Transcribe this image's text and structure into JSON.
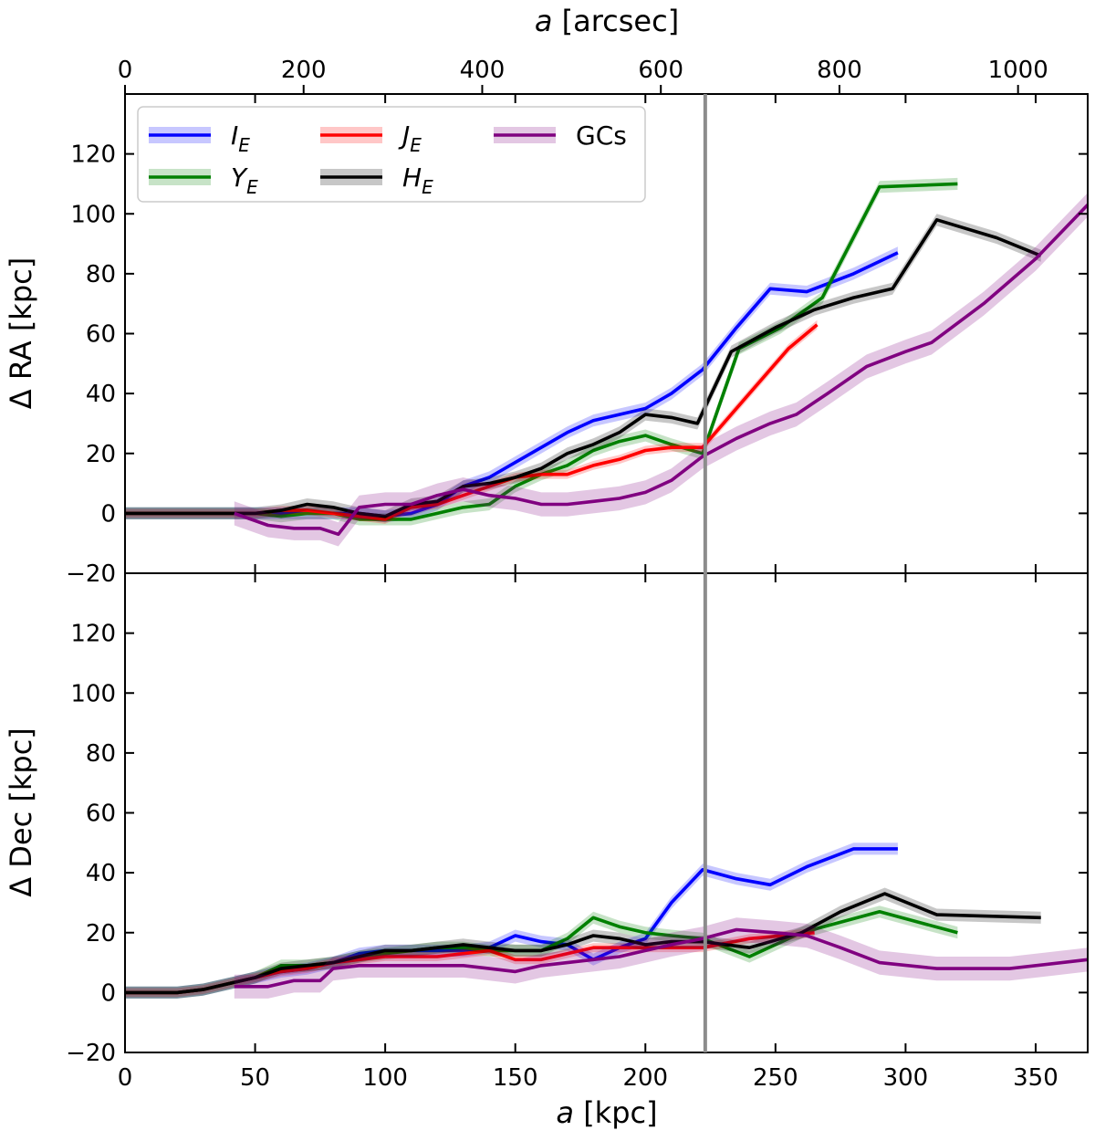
{
  "chart_data": {
    "type": "line",
    "top_axis": {
      "label_italic": "a",
      "label_rest": " [arcsec]",
      "range": [
        0,
        1078
      ],
      "ticks": [
        0,
        200,
        400,
        600,
        800,
        1000
      ]
    },
    "x_axis": {
      "label_italic": "a",
      "label_rest": " [kpc]",
      "range": [
        0,
        370
      ],
      "ticks": [
        0,
        50,
        100,
        150,
        200,
        250,
        300,
        350
      ]
    },
    "vline_x": 223,
    "legend": [
      {
        "key": "IE",
        "main": "I",
        "sub": "E",
        "italic": true
      },
      {
        "key": "YE",
        "main": "Y",
        "sub": "E",
        "italic": true
      },
      {
        "key": "JE",
        "main": "J",
        "sub": "E",
        "italic": true
      },
      {
        "key": "HE",
        "main": "H",
        "sub": "E",
        "italic": true
      },
      {
        "key": "GCs",
        "main": "GCs",
        "sub": "",
        "italic": false
      }
    ],
    "colors": {
      "IE": "#0000ff",
      "YE": "#008000",
      "JE": "#ff0000",
      "HE": "#000000",
      "GCs": "#800080"
    },
    "panels": [
      {
        "name": "ra",
        "ylabel": "Δ RA [kpc]",
        "ylim": [
          -20,
          140
        ],
        "yticks": [
          -20,
          0,
          20,
          40,
          60,
          80,
          100,
          120
        ],
        "series": [
          {
            "key": "IE",
            "band": 2,
            "x": [
              0,
              10,
              20,
              30,
              40,
              50,
              60,
              70,
              80,
              90,
              100,
              110,
              120,
              130,
              140,
              150,
              160,
              170,
              180,
              190,
              200,
              210,
              222,
              235,
              248,
              262,
              280,
              297
            ],
            "y": [
              0,
              0,
              0,
              0,
              0,
              0,
              0,
              0,
              0,
              0,
              -1,
              0,
              3,
              9,
              12,
              17,
              22,
              27,
              31,
              33,
              35,
              40,
              48,
              62,
              75,
              74,
              80,
              87
            ]
          },
          {
            "key": "YE",
            "band": 2,
            "x": [
              0,
              10,
              20,
              30,
              40,
              50,
              60,
              70,
              80,
              90,
              100,
              110,
              120,
              130,
              140,
              150,
              160,
              170,
              180,
              190,
              200,
              210,
              222,
              236,
              252,
              268,
              290,
              320
            ],
            "y": [
              0,
              0,
              0,
              0,
              0,
              0,
              -1,
              0,
              0,
              -2,
              -2,
              -2,
              0,
              2,
              3,
              9,
              13,
              16,
              21,
              24,
              26,
              23,
              20,
              55,
              62,
              72,
              109,
              110
            ]
          },
          {
            "key": "JE",
            "band": 1.5,
            "x": [
              0,
              10,
              20,
              30,
              40,
              50,
              60,
              70,
              80,
              90,
              100,
              110,
              120,
              130,
              140,
              150,
              160,
              170,
              180,
              190,
              200,
              210,
              222,
              240,
              255,
              266
            ],
            "y": [
              0,
              0,
              0,
              0,
              0,
              0,
              1,
              1,
              0,
              -1,
              -2,
              2,
              3,
              6,
              9,
              12,
              13,
              13,
              16,
              18,
              21,
              22,
              22,
              40,
              55,
              63
            ]
          },
          {
            "key": "HE",
            "band": 2,
            "x": [
              0,
              10,
              20,
              30,
              40,
              50,
              60,
              70,
              80,
              90,
              100,
              110,
              120,
              130,
              140,
              150,
              160,
              170,
              180,
              190,
              200,
              210,
              220,
              233,
              250,
              265,
              280,
              295,
              312,
              335,
              352
            ],
            "y": [
              0,
              0,
              0,
              0,
              0,
              0,
              1,
              3,
              2,
              0,
              -1,
              3,
              4,
              9,
              10,
              12,
              15,
              20,
              23,
              27,
              33,
              32,
              30,
              54,
              62,
              68,
              72,
              75,
              98,
              92,
              86
            ]
          },
          {
            "key": "GCs",
            "band": 4,
            "x": [
              42,
              55,
              65,
              75,
              82,
              90,
              100,
              110,
              120,
              130,
              140,
              150,
              160,
              170,
              180,
              190,
              200,
              210,
              222,
              235,
              248,
              258,
              270,
              285,
              300,
              310,
              330,
              350,
              370
            ],
            "y": [
              0,
              -4,
              -5,
              -5,
              -7,
              2,
              3,
              3,
              6,
              8,
              6,
              5,
              3,
              3,
              4,
              5,
              7,
              11,
              19,
              25,
              30,
              33,
              40,
              49,
              54,
              57,
              70,
              85,
              103
            ]
          }
        ]
      },
      {
        "name": "dec",
        "ylabel": "Δ Dec [kpc]",
        "ylim": [
          -20,
          140
        ],
        "yticks": [
          -20,
          0,
          20,
          40,
          60,
          80,
          100,
          120
        ],
        "series": [
          {
            "key": "IE",
            "band": 2,
            "x": [
              0,
              10,
              20,
              30,
              40,
              50,
              60,
              70,
              80,
              90,
              100,
              110,
              120,
              130,
              140,
              150,
              160,
              170,
              180,
              190,
              200,
              210,
              222,
              235,
              248,
              262,
              280,
              297
            ],
            "y": [
              0,
              0,
              0,
              1,
              3,
              5,
              7,
              8,
              10,
              13,
              14,
              14,
              14,
              14,
              15,
              19,
              17,
              16,
              11,
              15,
              18,
              30,
              41,
              38,
              36,
              42,
              48,
              48
            ]
          },
          {
            "key": "YE",
            "band": 2,
            "x": [
              0,
              10,
              20,
              30,
              40,
              50,
              60,
              70,
              80,
              90,
              100,
              110,
              120,
              130,
              140,
              150,
              160,
              170,
              180,
              190,
              200,
              210,
              222,
              240,
              260,
              290,
              320
            ],
            "y": [
              0,
              0,
              0,
              1,
              3,
              5,
              9,
              9,
              10,
              12,
              13,
              14,
              15,
              15,
              14,
              14,
              14,
              18,
              25,
              22,
              20,
              19,
              18,
              12,
              20,
              27,
              20
            ]
          },
          {
            "key": "JE",
            "band": 1.5,
            "x": [
              0,
              10,
              20,
              30,
              40,
              50,
              60,
              70,
              80,
              90,
              100,
              110,
              120,
              130,
              140,
              150,
              160,
              170,
              180,
              190,
              200,
              222,
              240,
              265
            ],
            "y": [
              0,
              0,
              0,
              1,
              3,
              5,
              7,
              8,
              10,
              11,
              12,
              12,
              12,
              13,
              14,
              11,
              11,
              13,
              15,
              15,
              15,
              15,
              18,
              20
            ]
          },
          {
            "key": "HE",
            "band": 2,
            "x": [
              0,
              10,
              20,
              30,
              40,
              50,
              60,
              70,
              80,
              90,
              100,
              110,
              120,
              130,
              140,
              150,
              160,
              170,
              180,
              190,
              200,
              210,
              222,
              240,
              260,
              275,
              292,
              312,
              352
            ],
            "y": [
              0,
              0,
              0,
              1,
              3,
              5,
              8,
              9,
              10,
              12,
              14,
              14,
              15,
              16,
              15,
              14,
              14,
              16,
              19,
              18,
              16,
              17,
              17,
              15,
              20,
              27,
              33,
              26,
              25
            ]
          },
          {
            "key": "GCs",
            "band": 4,
            "x": [
              42,
              55,
              65,
              75,
              80,
              90,
              100,
              110,
              120,
              130,
              140,
              150,
              160,
              170,
              180,
              190,
              200,
              210,
              222,
              235,
              250,
              262,
              275,
              290,
              312,
              340,
              370
            ],
            "y": [
              2,
              2,
              4,
              4,
              8,
              9,
              9,
              9,
              9,
              9,
              8,
              7,
              9,
              10,
              11,
              12,
              14,
              16,
              18,
              21,
              20,
              19,
              15,
              10,
              8,
              8,
              11
            ]
          }
        ]
      }
    ]
  }
}
